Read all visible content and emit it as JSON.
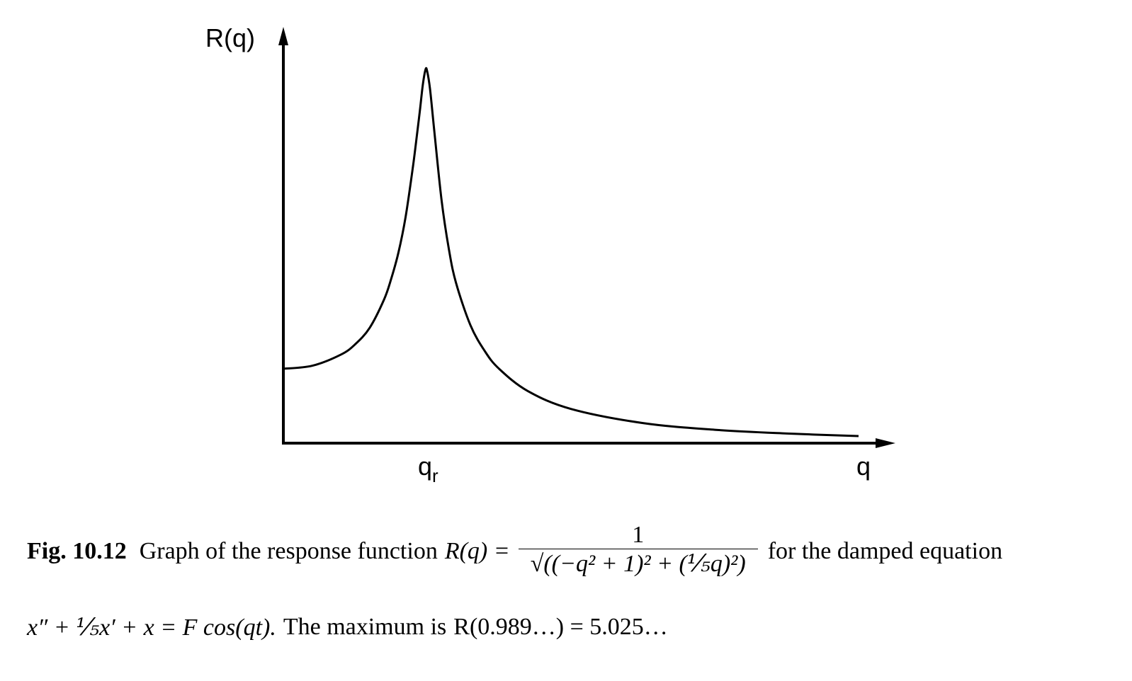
{
  "chart_data": {
    "type": "line",
    "xlabel": "q",
    "ylabel": "R(q)",
    "x_tick_labels": [
      {
        "value": 0.989,
        "label": "q",
        "subscript": "r"
      }
    ],
    "xlim": [
      0,
      4.1
    ],
    "ylim": [
      0,
      5.35
    ],
    "grid": false,
    "series": [
      {
        "x": [
          0,
          0.2,
          0.4,
          0.5,
          0.6,
          0.7,
          0.75,
          0.8,
          0.85,
          0.9,
          0.93,
          0.95,
          0.97,
          0.989,
          1.0,
          1.02,
          1.05,
          1.1,
          1.15,
          1.2,
          1.3,
          1.4,
          1.5,
          1.7,
          2.0,
          2.5,
          3.0,
          3.5,
          4.0
        ],
        "y": [
          1.0,
          1.04,
          1.19,
          1.33,
          1.55,
          1.93,
          2.21,
          2.56,
          3.04,
          3.7,
          4.16,
          4.48,
          4.82,
          5.025,
          5.0,
          4.76,
          4.19,
          3.27,
          2.62,
          2.16,
          1.59,
          1.24,
          1.0,
          0.7,
          0.46,
          0.27,
          0.18,
          0.13,
          0.095
        ]
      }
    ]
  },
  "caption": {
    "fig_label": "Fig. 10.12",
    "text_before": "Graph of the response function",
    "formula_lhs": "R(q) =",
    "numerator": "1",
    "denominator": "√((−q² + 1)² + (⅕q)²)",
    "text_after": "for the damped equation",
    "line2_equation": "x″ + ⅕x′ + x = F cos(qt).",
    "line2_text": "The maximum is",
    "line2_value": "R(0.989…) = 5.025…"
  }
}
